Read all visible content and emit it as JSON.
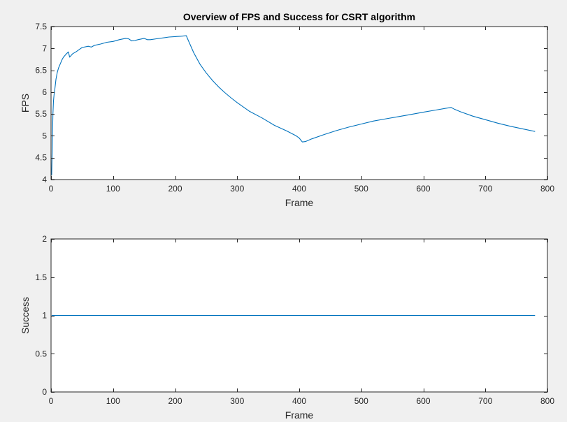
{
  "chart_data": [
    {
      "type": "line",
      "title": "Overview of FPS and Success for CSRT algorithm",
      "xlabel": "Frame",
      "ylabel": "FPS",
      "xlim": [
        0,
        800
      ],
      "ylim": [
        4,
        7.5
      ],
      "xticks": [
        0,
        100,
        200,
        300,
        400,
        500,
        600,
        700,
        800
      ],
      "yticks": [
        4,
        4.5,
        5,
        5.5,
        6,
        6.5,
        7,
        7.5
      ],
      "ytick_labels": [
        "4",
        "4.5",
        "5",
        "5.5",
        "6",
        "6.5",
        "7",
        "7.5"
      ],
      "grid": false,
      "color": "#0072bd",
      "series": [
        {
          "x": [
            1,
            2,
            3,
            4,
            5,
            6,
            8,
            10,
            12,
            15,
            18,
            20,
            25,
            28,
            30,
            35,
            40,
            45,
            50,
            60,
            65,
            70,
            80,
            90,
            100,
            110,
            120,
            125,
            130,
            135,
            140,
            150,
            155,
            160,
            170,
            180,
            190,
            200,
            210,
            218,
            220,
            230,
            240,
            250,
            260,
            270,
            280,
            290,
            300,
            320,
            340,
            360,
            380,
            395,
            400,
            405,
            410,
            420,
            440,
            460,
            480,
            500,
            520,
            540,
            560,
            580,
            600,
            620,
            640,
            645,
            650,
            660,
            680,
            700,
            720,
            740,
            760,
            780
          ],
          "y": [
            4.1,
            4.8,
            5.5,
            5.8,
            5.95,
            6.05,
            6.3,
            6.45,
            6.55,
            6.65,
            6.75,
            6.8,
            6.88,
            6.92,
            6.8,
            6.88,
            6.92,
            6.97,
            7.02,
            7.05,
            7.03,
            7.07,
            7.1,
            7.14,
            7.16,
            7.2,
            7.23,
            7.22,
            7.17,
            7.18,
            7.2,
            7.23,
            7.2,
            7.2,
            7.22,
            7.24,
            7.26,
            7.27,
            7.28,
            7.29,
            7.22,
            6.9,
            6.64,
            6.44,
            6.27,
            6.12,
            5.99,
            5.87,
            5.76,
            5.56,
            5.41,
            5.24,
            5.11,
            5.0,
            4.95,
            4.86,
            4.87,
            4.93,
            5.03,
            5.12,
            5.2,
            5.27,
            5.34,
            5.39,
            5.44,
            5.49,
            5.54,
            5.59,
            5.64,
            5.65,
            5.61,
            5.55,
            5.45,
            5.37,
            5.29,
            5.22,
            5.16,
            5.1
          ]
        }
      ]
    },
    {
      "type": "line",
      "title": "",
      "xlabel": "Frame",
      "ylabel": "Success",
      "xlim": [
        0,
        800
      ],
      "ylim": [
        0,
        2
      ],
      "xticks": [
        0,
        100,
        200,
        300,
        400,
        500,
        600,
        700,
        800
      ],
      "yticks": [
        0,
        0.5,
        1,
        1.5,
        2
      ],
      "ytick_labels": [
        "0",
        "0.5",
        "1",
        "1.5",
        "2"
      ],
      "grid": false,
      "color": "#0072bd",
      "series": [
        {
          "x": [
            1,
            780
          ],
          "y": [
            1,
            1
          ]
        }
      ]
    }
  ]
}
